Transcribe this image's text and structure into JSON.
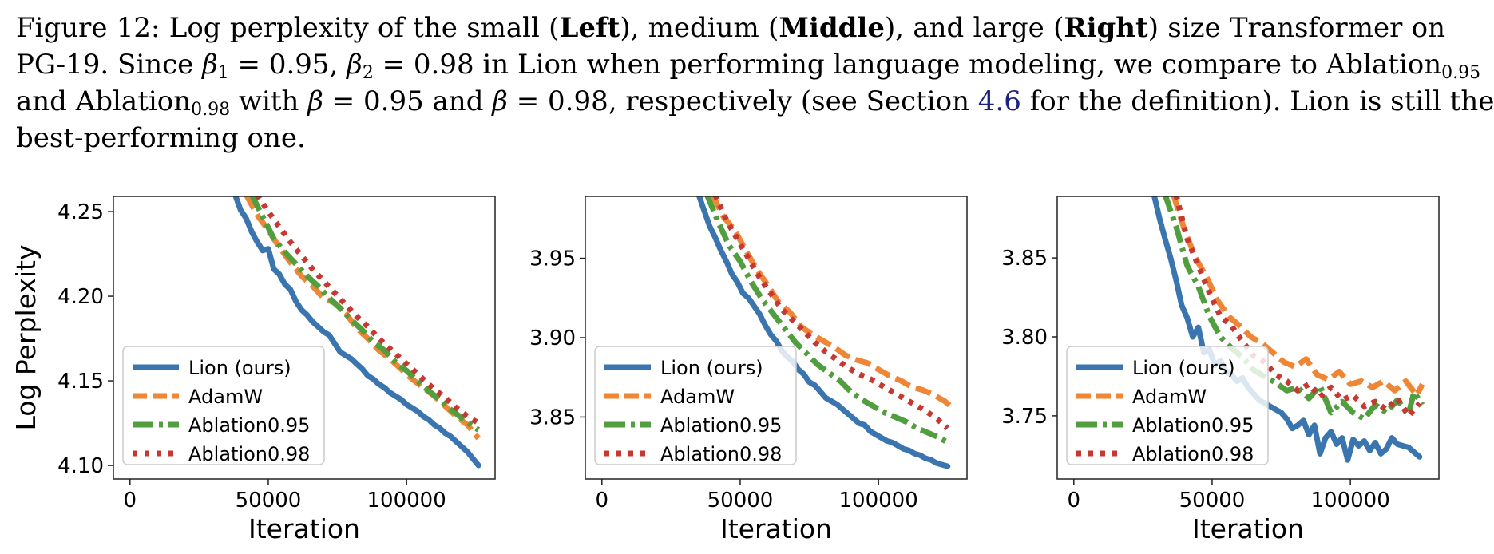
{
  "caption": {
    "line1": [
      "Figure 12: Log perplexity of the small (",
      "Left",
      "), medium (",
      "Middle",
      "), and large (",
      "Right",
      ") size Transformer on"
    ],
    "line2": [
      "PG-19. Since ",
      "β",
      "1",
      " = 0.95, ",
      "β",
      "2",
      " = 0.98 in Lion when performing language modeling, we compare to Ablation",
      "0.95"
    ],
    "line3": [
      "and Ablation",
      "0.98",
      " with ",
      "β",
      " = 0.95 and ",
      "β",
      " = 0.98, respectively (see Section ",
      "4.6",
      " for the definition). Lion is still the"
    ],
    "line4": "best-performing one."
  },
  "colors": {
    "lion": "#3a75af",
    "adamw": "#ef8636",
    "ablation095": "#519e3e",
    "ablation098": "#c53932"
  },
  "chart_data": [
    {
      "type": "line",
      "panel": "Left",
      "xlabel": "Iteration",
      "ylabel": "Log Perplexity",
      "xlim": [
        -6000,
        132000
      ],
      "ylim": [
        4.092,
        4.259
      ],
      "xticks": [
        0,
        50000,
        100000
      ],
      "xtick_labels": [
        "0",
        "50000",
        "100000"
      ],
      "yticks": [
        4.1,
        4.15,
        4.2,
        4.25
      ],
      "ytick_labels": [
        "4.10",
        "4.15",
        "4.20",
        "4.25"
      ],
      "legend_position": "lower-left",
      "series": [
        {
          "name": "Lion (ours)",
          "style": "solid",
          "x": [
            38000,
            40000,
            42000,
            44000,
            46000,
            48000,
            50000,
            52000,
            54000,
            56000,
            58000,
            60000,
            62000,
            64000,
            66000,
            68000,
            70000,
            72000,
            74000,
            76000,
            78000,
            80000,
            82000,
            84000,
            86000,
            88000,
            90000,
            92000,
            94000,
            96000,
            98000,
            100000,
            102000,
            104000,
            106000,
            108000,
            110000,
            112000,
            114000,
            116000,
            118000,
            120000,
            122000,
            124000,
            126000
          ],
          "y": [
            4.26,
            4.251,
            4.246,
            4.238,
            4.232,
            4.227,
            4.228,
            4.216,
            4.213,
            4.207,
            4.204,
            4.197,
            4.192,
            4.189,
            4.185,
            4.182,
            4.179,
            4.177,
            4.172,
            4.167,
            4.165,
            4.163,
            4.16,
            4.157,
            4.153,
            4.151,
            4.148,
            4.146,
            4.143,
            4.141,
            4.139,
            4.136,
            4.134,
            4.132,
            4.129,
            4.127,
            4.124,
            4.122,
            4.119,
            4.117,
            4.114,
            4.111,
            4.108,
            4.104,
            4.1
          ]
        },
        {
          "name": "AdamW",
          "style": "dashed",
          "x": [
            42000,
            46000,
            50000,
            54000,
            58000,
            62000,
            66000,
            70000,
            74000,
            78000,
            82000,
            86000,
            90000,
            94000,
            98000,
            102000,
            106000,
            110000,
            114000,
            118000,
            122000,
            126000
          ],
          "y": [
            4.26,
            4.248,
            4.239,
            4.229,
            4.22,
            4.212,
            4.206,
            4.199,
            4.196,
            4.19,
            4.181,
            4.175,
            4.168,
            4.163,
            4.157,
            4.151,
            4.146,
            4.141,
            4.135,
            4.129,
            4.124,
            4.116
          ]
        },
        {
          "name": "Ablation0.95",
          "style": "dashdot",
          "x": [
            44000,
            48000,
            52000,
            56000,
            60000,
            64000,
            68000,
            72000,
            76000,
            80000,
            84000,
            88000,
            92000,
            96000,
            100000,
            104000,
            108000,
            112000,
            116000,
            120000,
            124000,
            126000
          ],
          "y": [
            4.26,
            4.247,
            4.234,
            4.226,
            4.219,
            4.212,
            4.206,
            4.199,
            4.193,
            4.186,
            4.18,
            4.173,
            4.168,
            4.161,
            4.156,
            4.15,
            4.144,
            4.139,
            4.133,
            4.128,
            4.123,
            4.121
          ]
        },
        {
          "name": "Ablation0.98",
          "style": "dotted",
          "x": [
            46000,
            50000,
            54000,
            58000,
            62000,
            66000,
            70000,
            74000,
            78000,
            82000,
            86000,
            90000,
            94000,
            98000,
            102000,
            106000,
            110000,
            114000,
            118000,
            122000,
            126000
          ],
          "y": [
            4.26,
            4.25,
            4.241,
            4.232,
            4.224,
            4.216,
            4.209,
            4.202,
            4.195,
            4.188,
            4.182,
            4.175,
            4.169,
            4.163,
            4.157,
            4.151,
            4.145,
            4.14,
            4.134,
            4.129,
            4.125
          ]
        }
      ]
    },
    {
      "type": "line",
      "panel": "Middle",
      "xlabel": "Iteration",
      "ylabel": "",
      "xlim": [
        -6000,
        132000
      ],
      "ylim": [
        3.811,
        3.989
      ],
      "xticks": [
        0,
        50000,
        100000
      ],
      "xtick_labels": [
        "0",
        "50000",
        "100000"
      ],
      "yticks": [
        3.85,
        3.9,
        3.95
      ],
      "ytick_labels": [
        "3.85",
        "3.90",
        "3.95"
      ],
      "legend_position": "lower-left",
      "series": [
        {
          "name": "Lion (ours)",
          "style": "solid",
          "x": [
            35000,
            37000,
            39000,
            41000,
            43000,
            45000,
            47000,
            49000,
            51000,
            53000,
            55000,
            57000,
            59000,
            61000,
            63000,
            65000,
            67000,
            69000,
            71000,
            73000,
            75000,
            77000,
            79000,
            81000,
            83000,
            85000,
            87000,
            89000,
            91000,
            93000,
            95000,
            97000,
            99000,
            101000,
            103000,
            105000,
            107000,
            109000,
            111000,
            113000,
            115000,
            117000,
            119000,
            121000,
            123000,
            125000
          ],
          "y": [
            3.99,
            3.98,
            3.97,
            3.963,
            3.955,
            3.948,
            3.94,
            3.935,
            3.928,
            3.925,
            3.92,
            3.915,
            3.908,
            3.902,
            3.898,
            3.892,
            3.888,
            3.885,
            3.88,
            3.877,
            3.872,
            3.87,
            3.866,
            3.862,
            3.86,
            3.858,
            3.855,
            3.852,
            3.849,
            3.846,
            3.845,
            3.841,
            3.839,
            3.837,
            3.835,
            3.834,
            3.832,
            3.83,
            3.829,
            3.827,
            3.826,
            3.824,
            3.823,
            3.821,
            3.82,
            3.819
          ]
        },
        {
          "name": "AdamW",
          "style": "dashed",
          "x": [
            40000,
            44000,
            48000,
            52000,
            56000,
            60000,
            64000,
            68000,
            72000,
            76000,
            80000,
            84000,
            88000,
            92000,
            96000,
            100000,
            104000,
            108000,
            112000,
            116000,
            120000,
            124000,
            126000
          ],
          "y": [
            3.99,
            3.976,
            3.968,
            3.955,
            3.943,
            3.933,
            3.922,
            3.916,
            3.907,
            3.902,
            3.898,
            3.894,
            3.889,
            3.886,
            3.884,
            3.88,
            3.876,
            3.873,
            3.869,
            3.867,
            3.864,
            3.86,
            3.857
          ]
        },
        {
          "name": "Ablation0.95",
          "style": "dashdot",
          "x": [
            38000,
            42000,
            46000,
            50000,
            54000,
            58000,
            62000,
            66000,
            70000,
            74000,
            78000,
            82000,
            86000,
            90000,
            94000,
            98000,
            102000,
            106000,
            110000,
            114000,
            118000,
            122000,
            126000
          ],
          "y": [
            3.99,
            3.973,
            3.958,
            3.948,
            3.935,
            3.924,
            3.915,
            3.906,
            3.897,
            3.89,
            3.883,
            3.878,
            3.873,
            3.866,
            3.861,
            3.857,
            3.853,
            3.85,
            3.847,
            3.843,
            3.84,
            3.837,
            3.833
          ]
        },
        {
          "name": "Ablation0.98",
          "style": "dotted",
          "x": [
            41000,
            45000,
            49000,
            53000,
            57000,
            61000,
            65000,
            69000,
            73000,
            77000,
            81000,
            85000,
            89000,
            93000,
            97000,
            101000,
            105000,
            109000,
            113000,
            117000,
            121000,
            125000
          ],
          "y": [
            3.99,
            3.974,
            3.962,
            3.95,
            3.938,
            3.928,
            3.918,
            3.911,
            3.904,
            3.897,
            3.891,
            3.886,
            3.881,
            3.877,
            3.874,
            3.87,
            3.866,
            3.862,
            3.858,
            3.854,
            3.849,
            3.843
          ]
        }
      ]
    },
    {
      "type": "line",
      "panel": "Right",
      "xlabel": "Iteration",
      "ylabel": "",
      "xlim": [
        -6000,
        132000
      ],
      "ylim": [
        3.71,
        3.889
      ],
      "xticks": [
        0,
        50000,
        100000
      ],
      "xtick_labels": [
        "0",
        "50000",
        "100000"
      ],
      "yticks": [
        3.75,
        3.8,
        3.85
      ],
      "ytick_labels": [
        "3.75",
        "3.80",
        "3.85"
      ],
      "legend_position": "lower-left",
      "series": [
        {
          "name": "Lion (ours)",
          "style": "solid",
          "x": [
            29000,
            31000,
            33000,
            35000,
            37000,
            39000,
            41000,
            43000,
            45000,
            47000,
            49000,
            51000,
            53000,
            55000,
            57000,
            59000,
            61000,
            63000,
            65000,
            67000,
            69000,
            71000,
            73000,
            75000,
            77000,
            79000,
            81000,
            83000,
            85000,
            87000,
            89000,
            91000,
            93000,
            95000,
            97000,
            99000,
            101000,
            103000,
            105000,
            107000,
            109000,
            111000,
            113000,
            115000,
            117000,
            119000,
            121000,
            123000,
            125000
          ],
          "y": [
            3.89,
            3.875,
            3.862,
            3.85,
            3.836,
            3.82,
            3.812,
            3.8,
            3.806,
            3.79,
            3.792,
            3.782,
            3.785,
            3.778,
            3.776,
            3.772,
            3.774,
            3.768,
            3.764,
            3.76,
            3.758,
            3.756,
            3.754,
            3.752,
            3.748,
            3.742,
            3.744,
            3.747,
            3.738,
            3.744,
            3.726,
            3.736,
            3.74,
            3.732,
            3.736,
            3.722,
            3.735,
            3.731,
            3.734,
            3.728,
            3.733,
            3.726,
            3.729,
            3.736,
            3.732,
            3.731,
            3.73,
            3.727,
            3.724
          ]
        },
        {
          "name": "AdamW",
          "style": "dashed",
          "x": [
            36000,
            40000,
            44000,
            48000,
            52000,
            56000,
            60000,
            64000,
            68000,
            72000,
            76000,
            80000,
            84000,
            88000,
            92000,
            96000,
            100000,
            104000,
            108000,
            112000,
            116000,
            120000,
            124000,
            126000
          ],
          "y": [
            3.89,
            3.868,
            3.85,
            3.838,
            3.823,
            3.813,
            3.807,
            3.8,
            3.796,
            3.79,
            3.784,
            3.781,
            3.786,
            3.776,
            3.773,
            3.778,
            3.77,
            3.772,
            3.768,
            3.772,
            3.766,
            3.772,
            3.763,
            3.77
          ]
        },
        {
          "name": "Ablation0.95",
          "style": "dashdot",
          "x": [
            33000,
            37000,
            41000,
            45000,
            49000,
            53000,
            57000,
            61000,
            65000,
            69000,
            73000,
            77000,
            81000,
            85000,
            89000,
            93000,
            97000,
            101000,
            105000,
            109000,
            113000,
            117000,
            121000,
            123000,
            126000
          ],
          "y": [
            3.89,
            3.87,
            3.845,
            3.832,
            3.813,
            3.8,
            3.793,
            3.787,
            3.779,
            3.775,
            3.771,
            3.766,
            3.768,
            3.761,
            3.769,
            3.752,
            3.759,
            3.752,
            3.748,
            3.757,
            3.752,
            3.76,
            3.751,
            3.765,
            3.757
          ]
        },
        {
          "name": "Ablation0.98",
          "style": "dotted",
          "x": [
            37000,
            41000,
            45000,
            49000,
            53000,
            57000,
            61000,
            65000,
            69000,
            73000,
            77000,
            81000,
            85000,
            89000,
            93000,
            97000,
            101000,
            105000,
            109000,
            113000,
            117000,
            121000,
            125000
          ],
          "y": [
            3.89,
            3.862,
            3.845,
            3.828,
            3.813,
            3.807,
            3.797,
            3.788,
            3.784,
            3.776,
            3.772,
            3.766,
            3.77,
            3.762,
            3.768,
            3.76,
            3.763,
            3.756,
            3.759,
            3.754,
            3.761,
            3.75,
            3.758
          ]
        }
      ]
    }
  ]
}
